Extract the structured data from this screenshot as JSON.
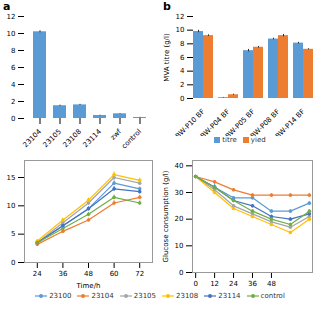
{
  "chart_data": [
    {
      "type": "bar",
      "title": "a",
      "categories": [
        "23104",
        "23105",
        "23108",
        "23114",
        "zwf",
        "control"
      ],
      "values": [
        10.2,
        1.5,
        1.6,
        0.35,
        0.55,
        0.12
      ],
      "errors": [
        0.12,
        0.07,
        0.07,
        0.04,
        0.04,
        0.02
      ],
      "color": "#5B9BD5",
      "ylim": [
        0,
        12
      ],
      "yticks": [
        0,
        2,
        4,
        6,
        8,
        10,
        12
      ]
    },
    {
      "type": "bar",
      "title": "b",
      "categories": [
        "BW-P10 BF",
        "BW-P04 BF",
        "BW-P05 BF",
        "BW-P08 BF",
        "BW-P14 BF"
      ],
      "series": [
        {
          "name": "titre",
          "color": "#5B9BD5",
          "values": [
            9.8,
            0.12,
            7.0,
            8.7,
            8.1
          ],
          "errors": [
            0.18,
            0.04,
            0.18,
            0.12,
            0.12
          ]
        },
        {
          "name": "yied",
          "color": "#ED7D31",
          "values": [
            9.2,
            0.55,
            7.5,
            9.2,
            7.2
          ],
          "errors": [
            0.12,
            0.08,
            0.12,
            0.18,
            0.08
          ]
        }
      ],
      "ylabel": "MVA titre (g/l)",
      "ylim": [
        0,
        12
      ],
      "yticks": [
        0,
        2,
        4,
        6,
        8,
        10,
        12
      ],
      "legend": "bottom"
    },
    {
      "type": "line",
      "x": [
        24,
        36,
        48,
        60,
        72
      ],
      "series": [
        {
          "name": "23100",
          "color": "#5B9BD5",
          "values": [
            3.5,
            6.5,
            9.5,
            14.0,
            13.0
          ],
          "errors": [
            0.2,
            0.3,
            0.3,
            0.4,
            0.3
          ]
        },
        {
          "name": "23104",
          "color": "#ED7D31",
          "values": [
            3.2,
            5.5,
            7.5,
            10.5,
            11.5
          ],
          "errors": [
            0.15,
            0.25,
            0.3,
            0.4,
            0.35
          ]
        },
        {
          "name": "23105",
          "color": "#A5A5A5",
          "values": [
            3.5,
            7.0,
            10.5,
            15.0,
            14.0
          ],
          "errors": [
            0.2,
            0.3,
            0.4,
            0.5,
            0.4
          ]
        },
        {
          "name": "23108",
          "color": "#FFC000",
          "values": [
            3.8,
            7.5,
            11.0,
            15.5,
            14.5
          ],
          "errors": [
            0.2,
            0.3,
            0.4,
            0.5,
            0.4
          ]
        },
        {
          "name": "23114",
          "color": "#4472C4",
          "values": [
            3.5,
            6.5,
            9.5,
            13.0,
            12.5
          ],
          "errors": [
            0.2,
            0.3,
            0.3,
            0.4,
            0.35
          ]
        },
        {
          "name": "control",
          "color": "#70AD47",
          "values": [
            3.5,
            6.0,
            8.5,
            11.5,
            10.5
          ],
          "errors": [
            0.2,
            0.3,
            0.3,
            0.4,
            0.35
          ]
        }
      ],
      "xlabel": "Time/h",
      "xlim": [
        18,
        78
      ],
      "xticks": [
        24,
        36,
        48,
        60,
        72
      ],
      "ylim": [
        0,
        18
      ],
      "yticks": [
        0,
        5,
        10,
        15
      ],
      "marker": "circle",
      "legend": "bottom"
    },
    {
      "type": "line",
      "x": [
        0,
        12,
        24,
        36,
        48,
        60,
        72
      ],
      "series": [
        {
          "name": "23100",
          "color": "#5B9BD5",
          "values": [
            36,
            32,
            28,
            28,
            23,
            23,
            26
          ],
          "errors": [
            0.3,
            1.5,
            0.5,
            0.5,
            0.5,
            0.5,
            0.5
          ]
        },
        {
          "name": "23104",
          "color": "#ED7D31",
          "values": [
            36,
            34,
            31,
            29,
            29,
            29,
            29
          ],
          "errors": [
            0.3,
            0.5,
            0.5,
            0.5,
            0.5,
            0.5,
            0.5
          ]
        },
        {
          "name": "23105",
          "color": "#A5A5A5",
          "values": [
            36,
            31,
            25,
            22,
            19,
            17,
            21
          ],
          "errors": [
            0.3,
            0.5,
            0.5,
            0.5,
            0.5,
            0.5,
            0.5
          ]
        },
        {
          "name": "23108",
          "color": "#FFC000",
          "values": [
            36,
            30,
            24,
            21,
            18,
            15,
            20
          ],
          "errors": [
            0.3,
            0.5,
            0.5,
            0.5,
            0.5,
            0.5,
            0.5
          ]
        },
        {
          "name": "23114",
          "color": "#4472C4",
          "values": [
            36,
            32,
            27,
            25,
            21,
            20,
            22
          ],
          "errors": [
            0.3,
            0.5,
            0.5,
            0.5,
            0.5,
            0.5,
            0.5
          ]
        },
        {
          "name": "control",
          "color": "#70AD47",
          "values": [
            36,
            32,
            27,
            23,
            20,
            18,
            23
          ],
          "errors": [
            0.3,
            0.5,
            0.5,
            0.5,
            0.5,
            0.5,
            0.5
          ]
        }
      ],
      "ylabel": "Glucose consumption (g/l)",
      "xlim": [
        -2,
        74
      ],
      "xticks": [
        0,
        12,
        24,
        36,
        48
      ],
      "ylim": [
        0,
        42
      ],
      "yticks": [
        0,
        10,
        20,
        30,
        40
      ],
      "marker": "circle",
      "legend": "bottom"
    }
  ]
}
